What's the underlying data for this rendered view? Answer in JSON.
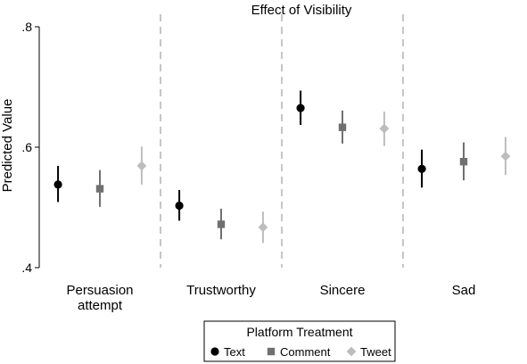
{
  "chart_data": {
    "type": "scatter",
    "title": "Effect of Visibility",
    "xlabel": "",
    "ylabel": "Predicted Value",
    "ylim": [
      0.4,
      0.8
    ],
    "yticks": [
      {
        "value": 0.4,
        "label": ".4"
      },
      {
        "value": 0.6,
        "label": ".6"
      },
      {
        "value": 0.8,
        "label": ".8"
      }
    ],
    "grid": false,
    "categories": [
      {
        "label_lines": [
          "Persuasion",
          "attempt"
        ]
      },
      {
        "label_lines": [
          "Trustworthy"
        ]
      },
      {
        "label_lines": [
          "Sincere"
        ]
      },
      {
        "label_lines": [
          "Sad"
        ]
      }
    ],
    "legend": {
      "title": "Platform Treatment",
      "placement": "bottom"
    },
    "series": [
      {
        "name": "Text",
        "marker": "circle",
        "color": "#000000",
        "values": [
          0.538,
          0.503,
          0.665,
          0.564
        ],
        "ci_low": [
          0.509,
          0.478,
          0.637,
          0.533
        ],
        "ci_high": [
          0.569,
          0.529,
          0.694,
          0.596
        ]
      },
      {
        "name": "Comment",
        "marker": "square",
        "color": "#707070",
        "values": [
          0.531,
          0.472,
          0.633,
          0.576
        ],
        "ci_low": [
          0.501,
          0.447,
          0.606,
          0.545
        ],
        "ci_high": [
          0.562,
          0.498,
          0.661,
          0.608
        ]
      },
      {
        "name": "Tweet",
        "marker": "diamond",
        "color": "#bdbdbd",
        "values": [
          0.569,
          0.467,
          0.631,
          0.585
        ],
        "ci_low": [
          0.538,
          0.441,
          0.602,
          0.554
        ],
        "ci_high": [
          0.601,
          0.493,
          0.659,
          0.617
        ]
      }
    ]
  }
}
